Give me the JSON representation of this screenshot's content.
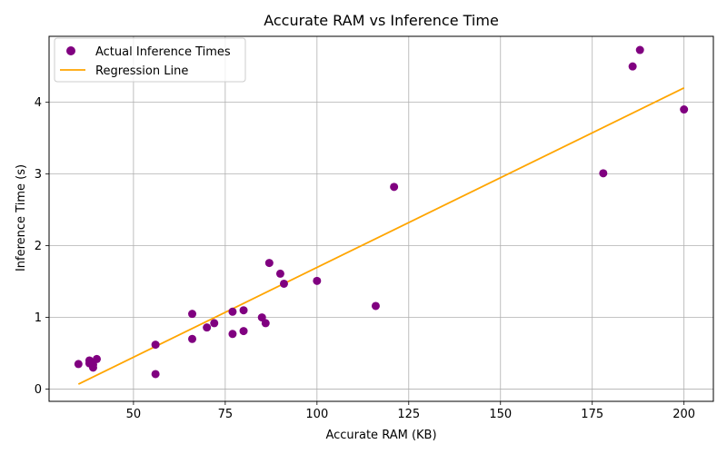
{
  "chart_data": {
    "type": "scatter",
    "title": "Accurate RAM vs Inference Time",
    "xlabel": "Accurate RAM (KB)",
    "ylabel": "Inference Time (s)",
    "xlim": [
      27,
      208
    ],
    "ylim": [
      -0.17,
      4.92
    ],
    "xticks": [
      50,
      75,
      100,
      125,
      150,
      175,
      200
    ],
    "yticks": [
      0,
      1,
      2,
      3,
      4
    ],
    "xtick_labels": [
      "50",
      "75",
      "100",
      "125",
      "150",
      "175",
      "200"
    ],
    "ytick_labels": [
      "0",
      "1",
      "2",
      "3",
      "4"
    ],
    "grid": true,
    "legend_position": "top-left",
    "series": [
      {
        "name": "Actual Inference Times",
        "kind": "scatter",
        "color": "#800080",
        "x": [
          35,
          38,
          38,
          39,
          39,
          40,
          56,
          56,
          66,
          66,
          70,
          72,
          77,
          77,
          80,
          80,
          85,
          86,
          87,
          90,
          91,
          100,
          116,
          121,
          178,
          186,
          188,
          200
        ],
        "y": [
          0.35,
          0.36,
          0.4,
          0.3,
          0.34,
          0.42,
          0.62,
          0.21,
          1.05,
          0.7,
          0.86,
          0.92,
          1.08,
          0.77,
          1.1,
          0.81,
          1.0,
          0.92,
          1.76,
          1.61,
          1.47,
          1.51,
          1.16,
          2.82,
          3.01,
          4.5,
          4.73,
          3.9
        ]
      },
      {
        "name": "Regression Line",
        "kind": "line",
        "color": "#FFA500",
        "x": [
          35,
          200
        ],
        "y": [
          0.07,
          4.2
        ]
      }
    ]
  }
}
